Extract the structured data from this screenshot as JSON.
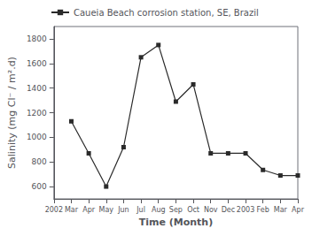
{
  "chart_data": {
    "type": "line",
    "categories": [
      "2002",
      "Mar",
      "Apr",
      "May",
      "Jun",
      "Jul",
      "Aug",
      "Sep",
      "Oct",
      "Nov",
      "Dec",
      "2003",
      "Feb",
      "Mar",
      "Apr"
    ],
    "series": [
      {
        "name": "Caueia Beach corrosion station, SE, Brazil",
        "color": "#2a2a2a",
        "marker": "square",
        "values": [
          null,
          1130,
          870,
          600,
          920,
          1650,
          1750,
          1290,
          1430,
          870,
          870,
          870,
          735,
          690,
          690
        ]
      }
    ],
    "xlabel": "Time (Month)",
    "ylabel": "Salinity (mg Cl⁻ / m².d)",
    "ylim": [
      500,
      1900
    ],
    "yticks": [
      600,
      800,
      1000,
      1200,
      1400,
      1600,
      1800
    ],
    "grid": false,
    "legend": "upper left"
  }
}
